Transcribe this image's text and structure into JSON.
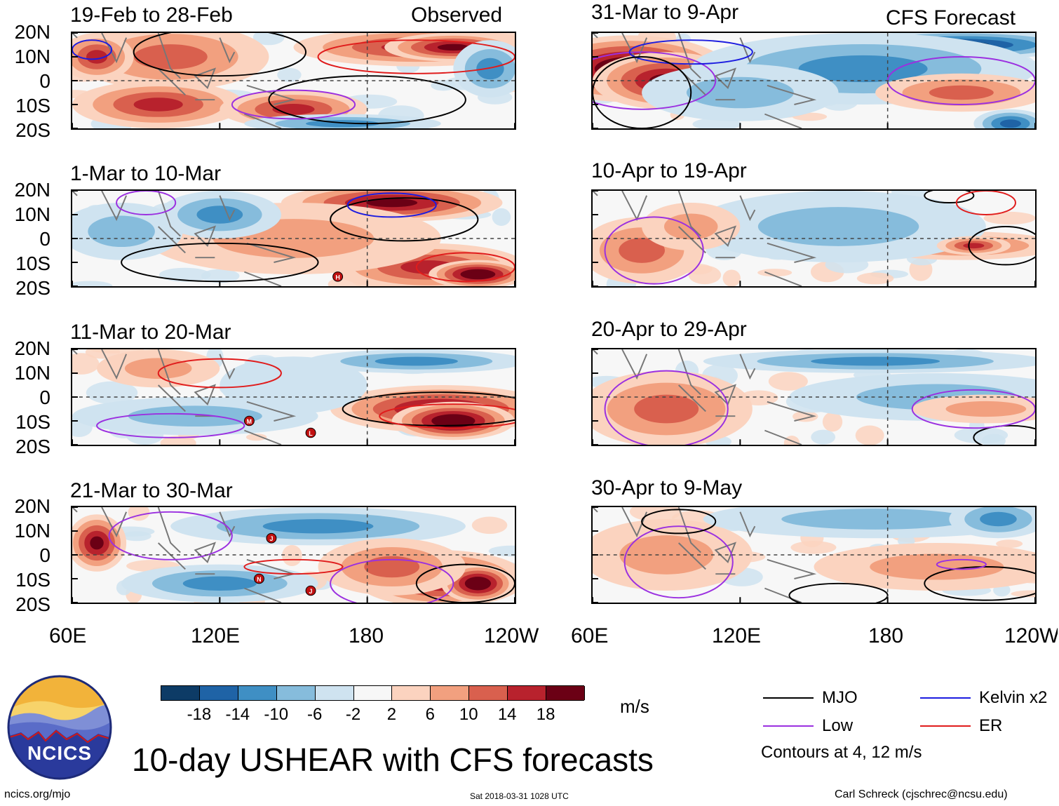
{
  "chart_data": {
    "type": "heatmap",
    "title": "10-day USHEAR with CFS forecasts",
    "observed_label": "Observed",
    "forecast_label": "CFS Forecast",
    "y_ticks": [
      "20N",
      "10N",
      "0",
      "10S",
      "20S"
    ],
    "x_ticks": [
      "60E",
      "120E",
      "180",
      "120W"
    ],
    "xlim": [
      60,
      240
    ],
    "ylim": [
      -20,
      20
    ],
    "observed_panels": [
      {
        "period": "19-Feb to 28-Feb"
      },
      {
        "period": "1-Mar to 10-Mar"
      },
      {
        "period": "11-Mar to 20-Mar"
      },
      {
        "period": "21-Mar to 30-Mar"
      }
    ],
    "forecast_panels": [
      {
        "period": "31-Mar to 9-Apr"
      },
      {
        "period": "10-Apr to 19-Apr"
      },
      {
        "period": "20-Apr to 29-Apr"
      },
      {
        "period": "30-Apr to 9-May"
      }
    ],
    "colorbar": {
      "unit": "m/s",
      "ticks": [
        "-18",
        "-14",
        "-10",
        "-6",
        "-2",
        "2",
        "6",
        "10",
        "14",
        "18"
      ],
      "colors": [
        "#0d3b66",
        "#1f63a6",
        "#3f8fc4",
        "#86bcdc",
        "#cfe3f0",
        "#f7f7f7",
        "#fbd3bf",
        "#f2a07f",
        "#d9604e",
        "#b8222d",
        "#6b0015"
      ]
    },
    "legend": {
      "items": [
        {
          "label": "MJO",
          "color": "#000000"
        },
        {
          "label": "Kelvin x2",
          "color": "#1c1ce0"
        },
        {
          "label": "Low",
          "color": "#9b30e0"
        },
        {
          "label": "ER",
          "color": "#e01c1c"
        }
      ],
      "note": "Contours at 4, 12 m/s"
    },
    "storm_markers": [
      {
        "panel": 1,
        "label": "H",
        "lon": 168,
        "lat": -16
      },
      {
        "panel": 2,
        "label": "M",
        "lon": 132,
        "lat": -10
      },
      {
        "panel": 2,
        "label": "L",
        "lon": 157,
        "lat": -15
      },
      {
        "panel": 3,
        "label": "J",
        "lon": 141,
        "lat": 7
      },
      {
        "panel": 3,
        "label": "N",
        "lon": 136,
        "lat": -10
      },
      {
        "panel": 3,
        "label": "J",
        "lon": 157,
        "lat": -15
      }
    ]
  },
  "footer": {
    "logo_text": "NCICS",
    "url": "ncics.org/mjo",
    "timestamp": "Sat 2018-03-31 1028 UTC",
    "author": "Carl Schreck (cjschrec@ncsu.edu)"
  }
}
